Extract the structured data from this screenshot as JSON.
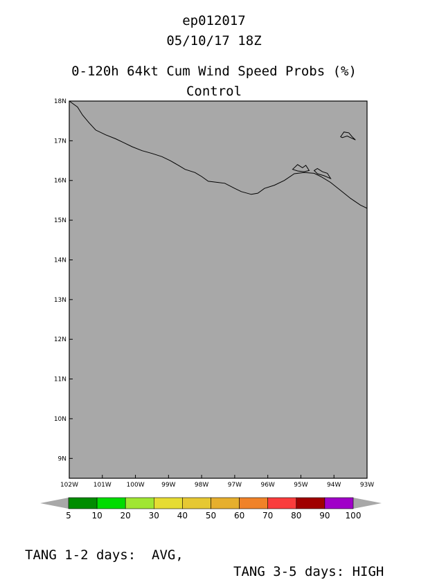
{
  "header": {
    "storm_id": "ep012017",
    "datetime": "05/10/17 18Z",
    "product": "0-120h 64kt Cum Wind Speed Probs (%)",
    "run": "Control"
  },
  "map": {
    "background_color": "#a8a8a8",
    "lat_labels": [
      "18N",
      "17N",
      "16N",
      "15N",
      "14N",
      "13N",
      "12N",
      "11N",
      "10N",
      "9N"
    ],
    "lon_labels": [
      "102W",
      "101W",
      "100W",
      "99W",
      "98W",
      "97W",
      "96W",
      "95W",
      "94W",
      "93W"
    ],
    "extent": {
      "lon_min": -102,
      "lon_max": -93,
      "lat_min": 8.5,
      "lat_max": 18
    },
    "coastline": [
      [
        -102.0,
        18.0
      ],
      [
        -101.75,
        17.85
      ],
      [
        -101.6,
        17.65
      ],
      [
        -101.4,
        17.45
      ],
      [
        -101.2,
        17.27
      ],
      [
        -100.9,
        17.15
      ],
      [
        -100.6,
        17.05
      ],
      [
        -100.35,
        16.95
      ],
      [
        -100.1,
        16.85
      ],
      [
        -99.8,
        16.75
      ],
      [
        -99.5,
        16.68
      ],
      [
        -99.2,
        16.6
      ],
      [
        -98.95,
        16.5
      ],
      [
        -98.7,
        16.38
      ],
      [
        -98.5,
        16.28
      ],
      [
        -98.2,
        16.2
      ],
      [
        -98.0,
        16.1
      ],
      [
        -97.8,
        15.98
      ],
      [
        -97.5,
        15.95
      ],
      [
        -97.3,
        15.93
      ],
      [
        -97.0,
        15.8
      ],
      [
        -96.8,
        15.72
      ],
      [
        -96.5,
        15.65
      ],
      [
        -96.3,
        15.68
      ],
      [
        -96.1,
        15.8
      ],
      [
        -95.8,
        15.88
      ],
      [
        -95.5,
        16.0
      ],
      [
        -95.2,
        16.17
      ],
      [
        -94.9,
        16.2
      ],
      [
        -94.6,
        16.18
      ],
      [
        -94.4,
        16.1
      ],
      [
        -94.1,
        15.95
      ],
      [
        -93.8,
        15.75
      ],
      [
        -93.5,
        15.55
      ],
      [
        -93.2,
        15.38
      ],
      [
        -93.0,
        15.3
      ]
    ],
    "lagoons": [
      [
        [
          -95.25,
          16.28
        ],
        [
          -95.1,
          16.4
        ],
        [
          -94.95,
          16.32
        ],
        [
          -94.85,
          16.38
        ],
        [
          -94.75,
          16.25
        ],
        [
          -94.9,
          16.22
        ],
        [
          -95.1,
          16.24
        ]
      ],
      [
        [
          -94.6,
          16.25
        ],
        [
          -94.5,
          16.3
        ],
        [
          -94.35,
          16.22
        ],
        [
          -94.2,
          16.18
        ],
        [
          -94.1,
          16.05
        ],
        [
          -94.3,
          16.12
        ],
        [
          -94.5,
          16.17
        ]
      ],
      [
        [
          -93.8,
          17.1
        ],
        [
          -93.7,
          17.22
        ],
        [
          -93.55,
          17.2
        ],
        [
          -93.45,
          17.1
        ],
        [
          -93.35,
          17.02
        ],
        [
          -93.6,
          17.12
        ],
        [
          -93.75,
          17.08
        ]
      ]
    ]
  },
  "legend": {
    "items": [
      {
        "label": "5",
        "color": "#008c00"
      },
      {
        "label": "10",
        "color": "#00dc00"
      },
      {
        "label": "20",
        "color": "#a0e632"
      },
      {
        "label": "30",
        "color": "#e6dc32"
      },
      {
        "label": "40",
        "color": "#e6c832"
      },
      {
        "label": "50",
        "color": "#e6af2d"
      },
      {
        "label": "60",
        "color": "#f08228"
      },
      {
        "label": "70",
        "color": "#fa3c3c"
      },
      {
        "label": "80",
        "color": "#a00000"
      },
      {
        "label": "90",
        "color": "#a000c8"
      },
      {
        "label": "100",
        "color": ""
      }
    ],
    "arrow_color": "#a8a8a8"
  },
  "footer": {
    "left": "TANG 1-2 days:  AVG,",
    "right": "TANG 3-5 days: HIGH"
  }
}
